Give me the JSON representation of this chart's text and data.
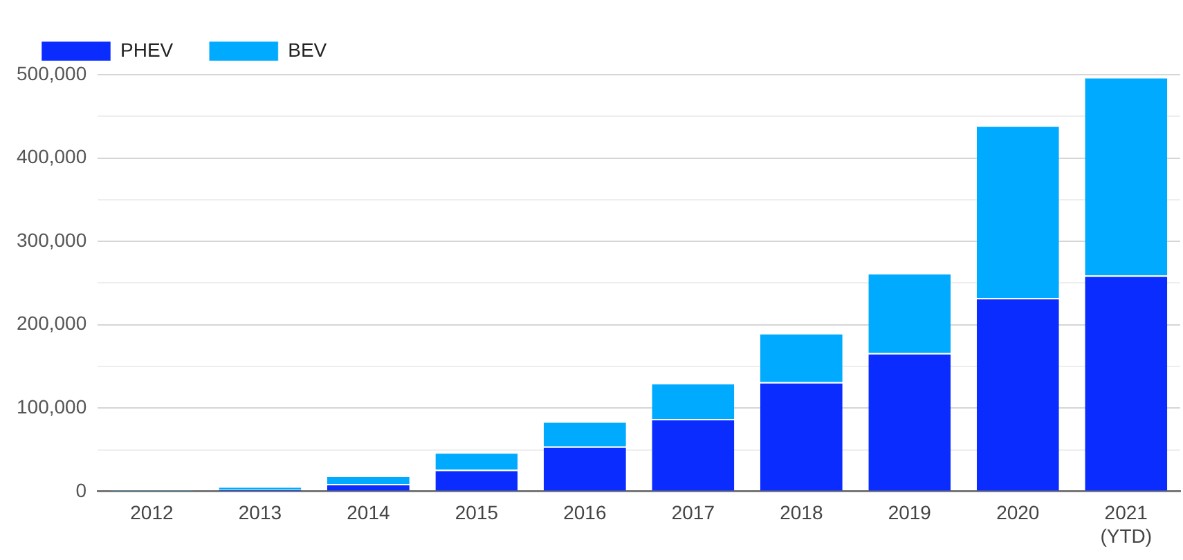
{
  "chart_data": {
    "type": "bar",
    "stacked": true,
    "categories": [
      "2012",
      "2013",
      "2014",
      "2015",
      "2016",
      "2017",
      "2018",
      "2019",
      "2020",
      "2021\n(YTD)"
    ],
    "series": [
      {
        "name": "PHEV",
        "color": "#0a2cff",
        "values": [
          1000,
          2000,
          9000,
          26000,
          54000,
          87000,
          131000,
          166000,
          232000,
          259000
        ]
      },
      {
        "name": "BEV",
        "color": "#00aaff",
        "values": [
          1000,
          4000,
          10000,
          21000,
          30000,
          43000,
          59000,
          96000,
          207000,
          238000
        ]
      }
    ],
    "ylim": [
      0,
      500000
    ],
    "yticks": [
      0,
      {
        "value": 50000,
        "label": null
      },
      {
        "value": 100000,
        "label": "100,000"
      },
      {
        "value": 150000,
        "label": null
      },
      {
        "value": 200000,
        "label": "200,000"
      },
      {
        "value": 250000,
        "label": null
      },
      {
        "value": 300000,
        "label": "300,000"
      },
      {
        "value": 350000,
        "label": null
      },
      {
        "value": 400000,
        "label": "400,000"
      },
      {
        "value": 450000,
        "label": null
      },
      {
        "value": 500000,
        "label": "500,000"
      }
    ],
    "grid": "y",
    "legend": "top left"
  }
}
